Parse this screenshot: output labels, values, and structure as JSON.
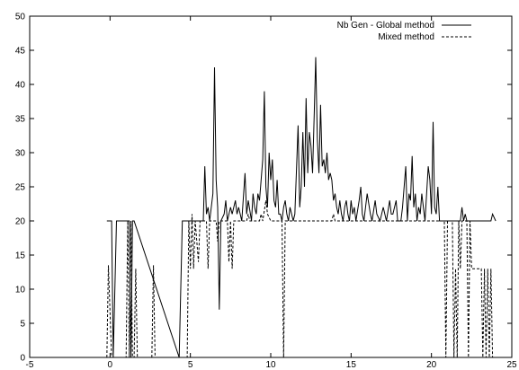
{
  "chart_data": {
    "type": "line",
    "title": "",
    "xlabel": "",
    "ylabel": "",
    "xlim": [
      -5,
      25
    ],
    "ylim": [
      0,
      50
    ],
    "xticks": [
      -5,
      0,
      5,
      10,
      15,
      20,
      25
    ],
    "yticks": [
      0,
      5,
      10,
      15,
      20,
      25,
      30,
      35,
      40,
      45,
      50
    ],
    "grid": false,
    "legend": "top-right",
    "series": [
      {
        "name": "Nb Gen - Global method",
        "style": "solid",
        "color": "#000000",
        "points": [
          [
            -0.2,
            20
          ],
          [
            0.1,
            20
          ],
          [
            0.2,
            0
          ],
          [
            0.4,
            20
          ],
          [
            1.2,
            20
          ],
          [
            1.3,
            0
          ],
          [
            1.4,
            20
          ],
          [
            1.5,
            20
          ],
          [
            4.3,
            0
          ],
          [
            4.5,
            20
          ],
          [
            5.8,
            20
          ],
          [
            5.9,
            28
          ],
          [
            6.0,
            21
          ],
          [
            6.1,
            22
          ],
          [
            6.2,
            20
          ],
          [
            6.4,
            24
          ],
          [
            6.5,
            42.5
          ],
          [
            6.6,
            26
          ],
          [
            6.7,
            22
          ],
          [
            6.8,
            7
          ],
          [
            6.9,
            20
          ],
          [
            7.1,
            21
          ],
          [
            7.2,
            23
          ],
          [
            7.3,
            20
          ],
          [
            7.5,
            22
          ],
          [
            7.6,
            21
          ],
          [
            7.8,
            23
          ],
          [
            7.9,
            21
          ],
          [
            8.0,
            22
          ],
          [
            8.2,
            20
          ],
          [
            8.4,
            27
          ],
          [
            8.5,
            21
          ],
          [
            8.6,
            23
          ],
          [
            8.8,
            20
          ],
          [
            8.9,
            24
          ],
          [
            9.0,
            22
          ],
          [
            9.1,
            21
          ],
          [
            9.2,
            24
          ],
          [
            9.3,
            23
          ],
          [
            9.4,
            26
          ],
          [
            9.5,
            29
          ],
          [
            9.6,
            39
          ],
          [
            9.7,
            25
          ],
          [
            9.8,
            22
          ],
          [
            9.9,
            30
          ],
          [
            10.0,
            26
          ],
          [
            10.1,
            29
          ],
          [
            10.2,
            23
          ],
          [
            10.3,
            22
          ],
          [
            10.4,
            26
          ],
          [
            10.5,
            21
          ],
          [
            10.6,
            21
          ],
          [
            10.7,
            20
          ],
          [
            10.8,
            22
          ],
          [
            10.9,
            23
          ],
          [
            11.0,
            21
          ],
          [
            11.1,
            20
          ],
          [
            11.2,
            22
          ],
          [
            11.3,
            21
          ],
          [
            11.4,
            20
          ],
          [
            11.5,
            21
          ],
          [
            11.7,
            34
          ],
          [
            11.8,
            22
          ],
          [
            11.9,
            25
          ],
          [
            12.0,
            33
          ],
          [
            12.1,
            25
          ],
          [
            12.2,
            38
          ],
          [
            12.3,
            27
          ],
          [
            12.4,
            33
          ],
          [
            12.5,
            31
          ],
          [
            12.6,
            27
          ],
          [
            12.7,
            35
          ],
          [
            12.8,
            44
          ],
          [
            12.9,
            32
          ],
          [
            13.0,
            27
          ],
          [
            13.1,
            37
          ],
          [
            13.2,
            28
          ],
          [
            13.3,
            29
          ],
          [
            13.4,
            27
          ],
          [
            13.5,
            30
          ],
          [
            13.6,
            26
          ],
          [
            13.7,
            27
          ],
          [
            13.8,
            26
          ],
          [
            13.9,
            23
          ],
          [
            14.0,
            24
          ],
          [
            14.1,
            22
          ],
          [
            14.2,
            21
          ],
          [
            14.3,
            23
          ],
          [
            14.4,
            21
          ],
          [
            14.5,
            20
          ],
          [
            14.6,
            22
          ],
          [
            14.7,
            23
          ],
          [
            14.8,
            21
          ],
          [
            14.9,
            20
          ],
          [
            15.0,
            23
          ],
          [
            15.1,
            21
          ],
          [
            15.2,
            22
          ],
          [
            15.3,
            20
          ],
          [
            15.5,
            23
          ],
          [
            15.6,
            25
          ],
          [
            15.7,
            21
          ],
          [
            15.8,
            20
          ],
          [
            16.0,
            24
          ],
          [
            16.2,
            21
          ],
          [
            16.3,
            20
          ],
          [
            16.5,
            23
          ],
          [
            16.6,
            21
          ],
          [
            16.8,
            20
          ],
          [
            17.0,
            22
          ],
          [
            17.2,
            20
          ],
          [
            17.4,
            23
          ],
          [
            17.5,
            21
          ],
          [
            17.6,
            21
          ],
          [
            17.8,
            23
          ],
          [
            17.9,
            20
          ],
          [
            18.1,
            20
          ],
          [
            18.2,
            22
          ],
          [
            18.4,
            28
          ],
          [
            18.5,
            20
          ],
          [
            18.6,
            24
          ],
          [
            18.7,
            23
          ],
          [
            18.8,
            29.5
          ],
          [
            18.9,
            22
          ],
          [
            19.0,
            24
          ],
          [
            19.1,
            20
          ],
          [
            19.2,
            22
          ],
          [
            19.3,
            21
          ],
          [
            19.4,
            24
          ],
          [
            19.5,
            22
          ],
          [
            19.6,
            20
          ],
          [
            19.8,
            28
          ],
          [
            19.9,
            26
          ],
          [
            20.0,
            21
          ],
          [
            20.1,
            34.5
          ],
          [
            20.2,
            22
          ],
          [
            20.3,
            21
          ],
          [
            20.4,
            25
          ],
          [
            20.5,
            20
          ],
          [
            21.8,
            20
          ],
          [
            21.9,
            22
          ],
          [
            22.0,
            20
          ],
          [
            22.1,
            21
          ],
          [
            22.2,
            20
          ],
          [
            23.7,
            20
          ],
          [
            23.8,
            21
          ],
          [
            24.0,
            20
          ]
        ]
      },
      {
        "name": "Mixed method",
        "style": "dashed",
        "color": "#000000",
        "points": [
          [
            -0.2,
            0
          ],
          [
            -0.1,
            13.5
          ],
          [
            0.1,
            0
          ],
          [
            1.0,
            0
          ],
          [
            1.1,
            20
          ],
          [
            1.2,
            0
          ],
          [
            1.3,
            20
          ],
          [
            1.4,
            0
          ],
          [
            1.5,
            0
          ],
          [
            1.6,
            13
          ],
          [
            1.7,
            0
          ],
          [
            2.6,
            0
          ],
          [
            2.7,
            13.5
          ],
          [
            2.8,
            0
          ],
          [
            4.8,
            0
          ],
          [
            4.9,
            20
          ],
          [
            5.0,
            13
          ],
          [
            5.1,
            21
          ],
          [
            5.2,
            13
          ],
          [
            5.3,
            20
          ],
          [
            5.5,
            14
          ],
          [
            5.6,
            20
          ],
          [
            6.0,
            20
          ],
          [
            6.1,
            13
          ],
          [
            6.2,
            20
          ],
          [
            6.6,
            20
          ],
          [
            6.7,
            17
          ],
          [
            6.8,
            20
          ],
          [
            7.3,
            20
          ],
          [
            7.4,
            14
          ],
          [
            7.5,
            20
          ],
          [
            7.6,
            13
          ],
          [
            7.7,
            20
          ],
          [
            7.9,
            20
          ],
          [
            8.5,
            20
          ],
          [
            8.6,
            21
          ],
          [
            8.7,
            20
          ],
          [
            9.3,
            20
          ],
          [
            9.4,
            21
          ],
          [
            9.5,
            20
          ],
          [
            9.7,
            23
          ],
          [
            9.8,
            21
          ],
          [
            10.0,
            20
          ],
          [
            10.7,
            20
          ],
          [
            10.8,
            0
          ],
          [
            10.9,
            20
          ],
          [
            13.8,
            20
          ],
          [
            13.9,
            21
          ],
          [
            14.0,
            20
          ],
          [
            20.8,
            20
          ],
          [
            20.9,
            0
          ],
          [
            21.0,
            20
          ],
          [
            21.3,
            20
          ],
          [
            21.4,
            0
          ],
          [
            21.5,
            13
          ],
          [
            21.6,
            0
          ],
          [
            21.7,
            20
          ],
          [
            21.8,
            13
          ],
          [
            21.9,
            20
          ],
          [
            22.2,
            20
          ],
          [
            22.3,
            0
          ],
          [
            22.4,
            20
          ],
          [
            22.5,
            13
          ],
          [
            23.1,
            13
          ],
          [
            23.2,
            0
          ],
          [
            23.3,
            13
          ],
          [
            23.4,
            0
          ],
          [
            23.5,
            13
          ],
          [
            23.6,
            0
          ],
          [
            23.7,
            13
          ],
          [
            23.8,
            0
          ],
          [
            24.0,
            0
          ]
        ]
      }
    ]
  }
}
